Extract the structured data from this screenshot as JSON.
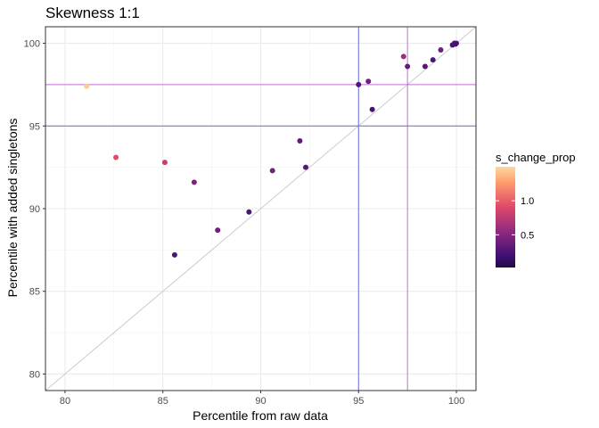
{
  "chart_data": {
    "type": "scatter",
    "title": "Skewness 1:1",
    "xlabel": "Percentile from raw data",
    "ylabel": "Percentile with added singletons",
    "xlim": [
      79.0,
      101.0
    ],
    "ylim": [
      79.0,
      101.0
    ],
    "x_ticks": [
      80,
      85,
      90,
      95,
      100
    ],
    "y_ticks": [
      80,
      85,
      90,
      95,
      100
    ],
    "grid": true,
    "theme": "bw",
    "identity_line": {
      "slope": 1,
      "intercept": 0,
      "color": "#cccccc"
    },
    "reference_lines": {
      "vertical": [
        {
          "x": 95,
          "color": "#6b6bdd"
        },
        {
          "x": 97.5,
          "color": "#c46bdd"
        }
      ],
      "horizontal": [
        {
          "y": 95,
          "color": "#6b6bdd"
        },
        {
          "y": 97.5,
          "color": "#c46bdd"
        }
      ]
    },
    "color_legend": {
      "title": "s_change_prop",
      "min": 0.02,
      "max": 1.5,
      "breaks": [
        0.5,
        1.0
      ],
      "break_labels": [
        "0.5",
        "1.0"
      ],
      "palette": [
        "#000004",
        "#3b0f70",
        "#8c2981",
        "#de4968",
        "#fe9f6d",
        "#fcfdbf"
      ],
      "position": "right"
    },
    "points": [
      {
        "x": 81.1,
        "y": 97.4,
        "c": 1.45
      },
      {
        "x": 82.6,
        "y": 93.1,
        "c": 0.92
      },
      {
        "x": 85.1,
        "y": 92.8,
        "c": 0.8
      },
      {
        "x": 85.6,
        "y": 87.2,
        "c": 0.25
      },
      {
        "x": 86.6,
        "y": 91.6,
        "c": 0.45
      },
      {
        "x": 87.8,
        "y": 88.7,
        "c": 0.4
      },
      {
        "x": 89.4,
        "y": 89.8,
        "c": 0.25
      },
      {
        "x": 90.6,
        "y": 92.3,
        "c": 0.42
      },
      {
        "x": 92.0,
        "y": 94.1,
        "c": 0.35
      },
      {
        "x": 92.3,
        "y": 92.5,
        "c": 0.3
      },
      {
        "x": 95.0,
        "y": 97.5,
        "c": 0.25
      },
      {
        "x": 95.5,
        "y": 97.7,
        "c": 0.4
      },
      {
        "x": 95.7,
        "y": 96.0,
        "c": 0.22
      },
      {
        "x": 97.3,
        "y": 99.2,
        "c": 0.6
      },
      {
        "x": 97.5,
        "y": 98.6,
        "c": 0.35
      },
      {
        "x": 98.4,
        "y": 98.6,
        "c": 0.3
      },
      {
        "x": 98.8,
        "y": 99.0,
        "c": 0.25
      },
      {
        "x": 99.2,
        "y": 99.6,
        "c": 0.38
      },
      {
        "x": 99.8,
        "y": 99.9,
        "c": 0.2
      },
      {
        "x": 99.9,
        "y": 100.0,
        "c": 0.25
      },
      {
        "x": 100.0,
        "y": 100.0,
        "c": 0.3
      },
      {
        "x": 99.95,
        "y": 99.95,
        "c": 0.22
      }
    ]
  }
}
